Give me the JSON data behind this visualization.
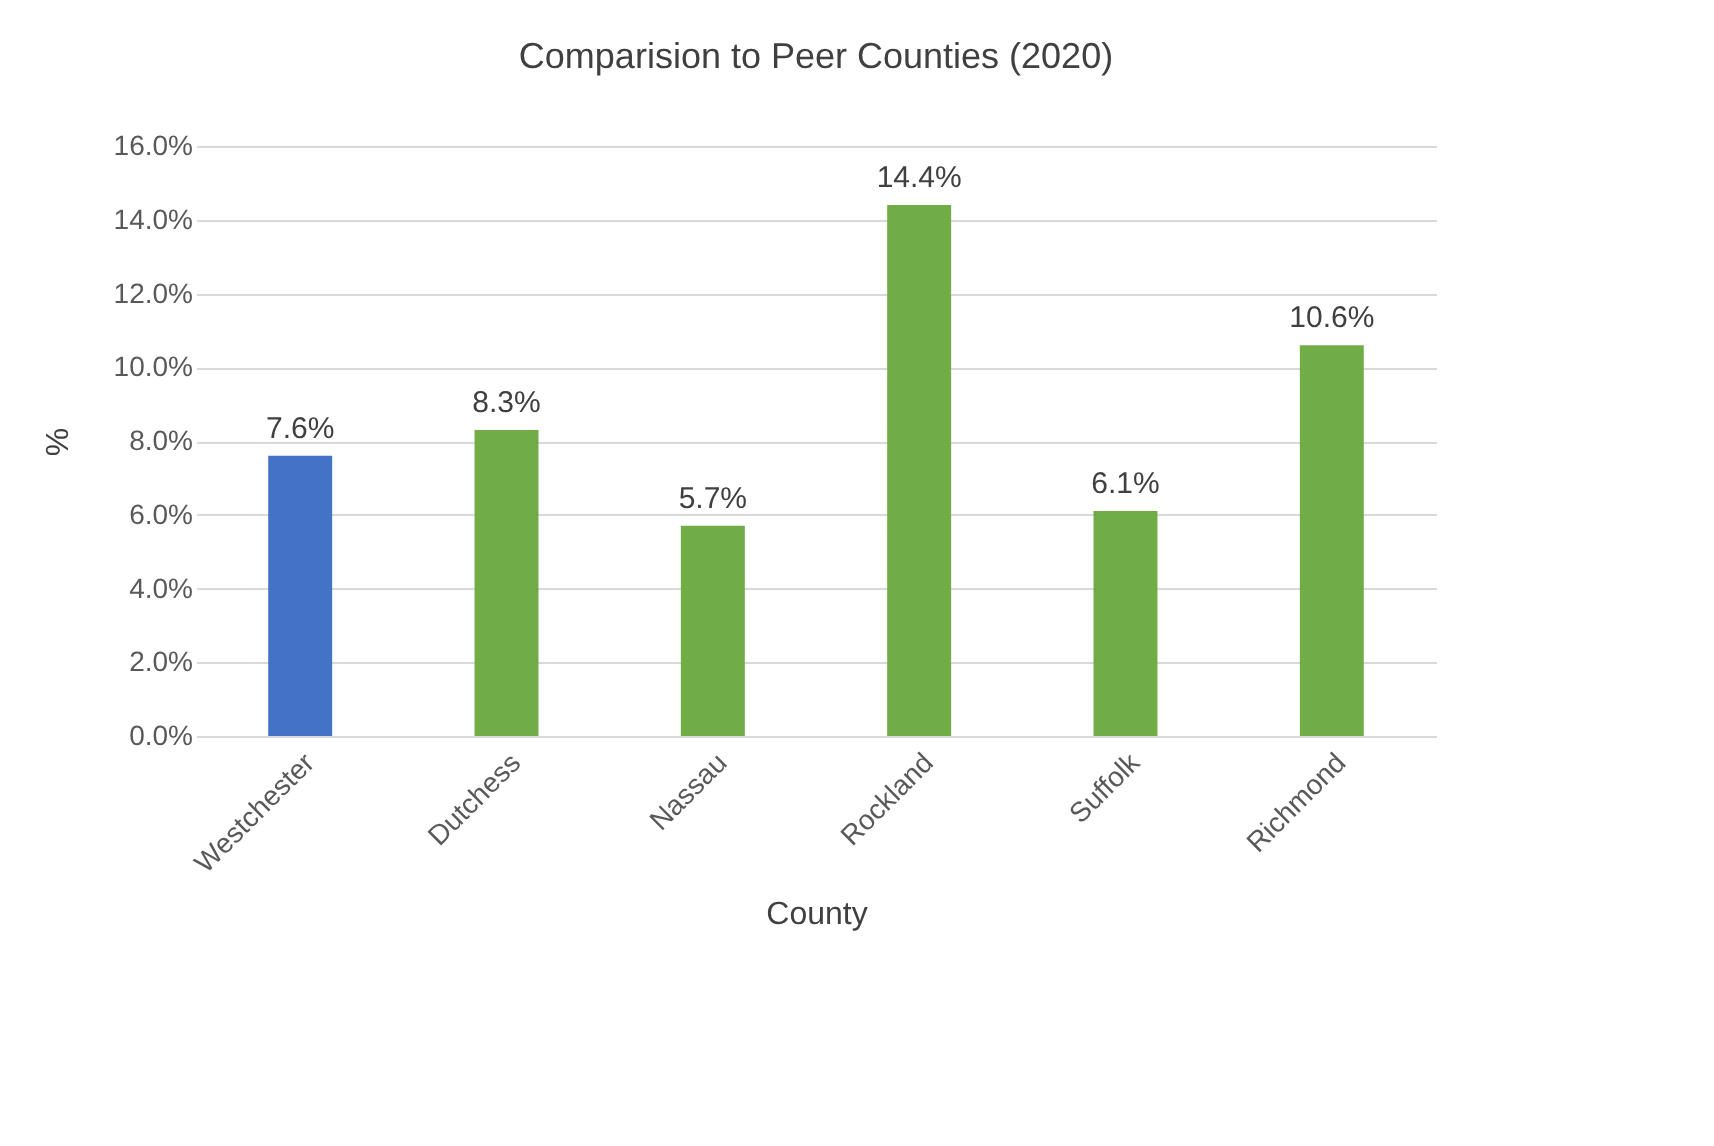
{
  "chart_data": {
    "type": "bar",
    "title": "Comparision to Peer Counties (2020)",
    "xlabel": "County",
    "ylabel": "%",
    "categories": [
      "Westchester",
      "Dutchess",
      "Nassau",
      "Rockland",
      "Suffolk",
      "Richmond"
    ],
    "values": [
      7.6,
      8.3,
      5.7,
      14.4,
      6.1,
      10.6
    ],
    "colors": [
      "#4472c4",
      "#70ad47",
      "#70ad47",
      "#70ad47",
      "#70ad47",
      "#70ad47"
    ],
    "value_labels": [
      "7.6%",
      "8.3%",
      "5.7%",
      "14.4%",
      "6.1%",
      "10.6%"
    ],
    "ylim": [
      0,
      16
    ],
    "yticks": [
      {
        "value": 0,
        "label": "0.0%"
      },
      {
        "value": 2,
        "label": "2.0%"
      },
      {
        "value": 4,
        "label": "4.0%"
      },
      {
        "value": 6,
        "label": "6.0%"
      },
      {
        "value": 8,
        "label": "8.0%"
      },
      {
        "value": 10,
        "label": "10.0%"
      },
      {
        "value": 12,
        "label": "12.0%"
      },
      {
        "value": 14,
        "label": "14.0%"
      },
      {
        "value": 16,
        "label": "16.0%"
      }
    ],
    "grid": "y"
  }
}
